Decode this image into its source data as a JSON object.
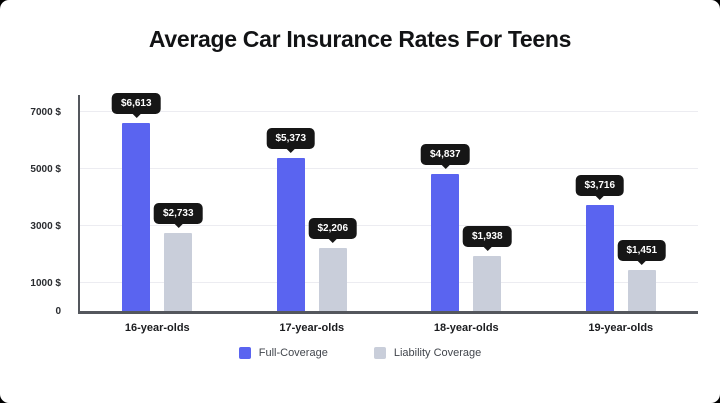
{
  "page": {
    "background": "#000000",
    "card_background": "#ffffff"
  },
  "header": {
    "title": "Average Car Insurance Rates For Teens"
  },
  "chart_data": {
    "type": "bar",
    "title": "Average Car Insurance Rates For Teens",
    "categories": [
      "16-year-olds",
      "17-year-olds",
      "18-year-olds",
      "19-year-olds"
    ],
    "series": [
      {
        "name": "Full-Coverage",
        "color": "#5a64f0",
        "values": [
          6613,
          5373,
          4837,
          3716
        ],
        "labels": [
          "$6,613",
          "$5,373",
          "$4,837",
          "$3,716"
        ]
      },
      {
        "name": "Liability Coverage",
        "color": "#c9ceda",
        "values": [
          2733,
          2206,
          1938,
          1451
        ],
        "labels": [
          "$2,733",
          "$2,206",
          "$1,938",
          "$1,451"
        ]
      }
    ],
    "xlabel": "",
    "ylabel": "",
    "ylim": [
      0,
      7600
    ],
    "yticks": [
      {
        "value": 0,
        "label": "0"
      },
      {
        "value": 1000,
        "label": "1000 $"
      },
      {
        "value": 3000,
        "label": "3000 $"
      },
      {
        "value": 5000,
        "label": "5000 $"
      },
      {
        "value": 7000,
        "label": "7000 $"
      }
    ],
    "grid": "horizontal",
    "legend_position": "bottom",
    "value_label_style": "dark-tooltip-with-pointer",
    "axis_color": "#54575d",
    "grid_color": "#ececf1",
    "tooltip_bg": "#161616",
    "tooltip_text_color": "#ffffff"
  }
}
